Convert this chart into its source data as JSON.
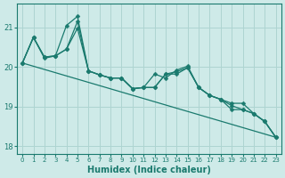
{
  "xlabel": "Humidex (Indice chaleur)",
  "ylabel": "",
  "bg_color": "#ceeae8",
  "grid_color": "#aed4d1",
  "line_color": "#1a7a6e",
  "xlim": [
    -0.5,
    23.5
  ],
  "ylim": [
    17.8,
    21.6
  ],
  "yticks": [
    18,
    19,
    20,
    21
  ],
  "xticks": [
    0,
    1,
    2,
    3,
    4,
    5,
    6,
    7,
    8,
    9,
    10,
    11,
    12,
    13,
    14,
    15,
    16,
    17,
    18,
    19,
    20,
    21,
    22,
    23
  ],
  "series": [
    [
      20.1,
      20.75,
      20.25,
      20.28,
      20.45,
      21.15,
      19.9,
      19.8,
      19.72,
      19.72,
      19.45,
      19.48,
      19.48,
      19.82,
      19.88,
      19.98,
      19.48,
      19.28,
      19.18,
      19.08,
      19.08,
      18.82,
      18.62,
      18.22
    ],
    [
      20.1,
      20.75,
      20.25,
      20.28,
      21.05,
      21.28,
      19.9,
      19.8,
      19.72,
      19.72,
      19.45,
      19.48,
      19.82,
      19.72,
      19.92,
      20.02,
      19.48,
      19.28,
      19.18,
      18.92,
      18.92,
      18.82,
      18.62,
      18.22
    ],
    [
      20.1,
      20.75,
      20.22,
      20.28,
      20.45,
      20.98,
      19.9,
      19.8,
      19.72,
      19.72,
      19.45,
      19.48,
      19.48,
      19.82,
      19.82,
      19.98,
      19.48,
      19.28,
      19.18,
      19.02,
      18.92,
      18.82,
      18.62,
      18.22
    ]
  ],
  "markers": [
    "D",
    "D",
    "D"
  ],
  "marker_size": 2.5,
  "linewidth": 0.9
}
